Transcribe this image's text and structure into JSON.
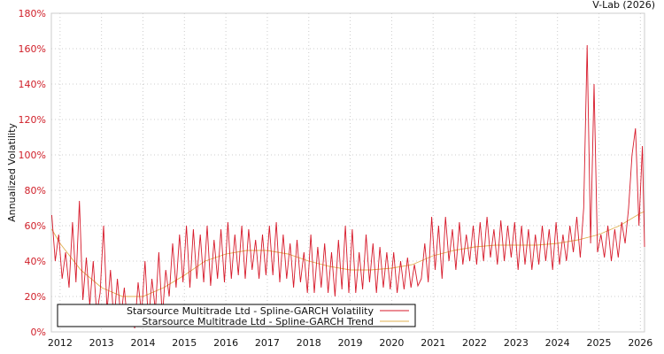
{
  "chart_data": {
    "type": "line",
    "title": "",
    "credit": "V-Lab (2026)",
    "xlabel": "",
    "ylabel": "Annualized Volatility",
    "xlim": [
      2011.79,
      2026.1
    ],
    "ylim": [
      0,
      180
    ],
    "grid": true,
    "legend_placement": "bottom-left",
    "x_ticks": [
      "2012",
      "2013",
      "2014",
      "2015",
      "2016",
      "2017",
      "2018",
      "2019",
      "2020",
      "2021",
      "2022",
      "2023",
      "2024",
      "2025",
      "2026"
    ],
    "y_ticks": [
      "0%",
      "20%",
      "40%",
      "60%",
      "80%",
      "100%",
      "120%",
      "140%",
      "160%",
      "180%"
    ],
    "colors": {
      "volatility": "#d7192a",
      "trend": "#e0b050"
    },
    "series": [
      {
        "name": "Starsource Multitrade Ltd - Spline-GARCH Volatility",
        "x_start": 2011.8,
        "x_step": 0.08333,
        "values": [
          66,
          40,
          55,
          30,
          45,
          25,
          62,
          28,
          74,
          18,
          42,
          15,
          40,
          10,
          22,
          60,
          12,
          35,
          5,
          30,
          8,
          25,
          3,
          15,
          2,
          28,
          10,
          40,
          5,
          30,
          12,
          45,
          8,
          35,
          20,
          50,
          25,
          55,
          28,
          60,
          25,
          58,
          30,
          55,
          28,
          60,
          26,
          52,
          30,
          58,
          28,
          62,
          30,
          55,
          32,
          60,
          30,
          58,
          35,
          52,
          30,
          55,
          32,
          60,
          32,
          62,
          28,
          55,
          30,
          50,
          25,
          52,
          28,
          45,
          22,
          55,
          22,
          48,
          25,
          50,
          22,
          45,
          20,
          52,
          24,
          60,
          22,
          58,
          22,
          45,
          24,
          55,
          28,
          50,
          22,
          48,
          25,
          45,
          24,
          45,
          22,
          40,
          24,
          42,
          25,
          38,
          26,
          30,
          50,
          28,
          65,
          35,
          60,
          30,
          65,
          40,
          58,
          35,
          62,
          38,
          55,
          40,
          60,
          38,
          62,
          40,
          65,
          42,
          58,
          38,
          63,
          40,
          60,
          42,
          62,
          35,
          60,
          38,
          58,
          35,
          55,
          38,
          60,
          40,
          58,
          35,
          62,
          38,
          55,
          40,
          60,
          45,
          65,
          42,
          70,
          162,
          50,
          140,
          45,
          55,
          42,
          60,
          40,
          58,
          42,
          62,
          50,
          70,
          100,
          115,
          60,
          105,
          48
        ]
      },
      {
        "name": "Starsource Multitrade Ltd - Spline-GARCH Trend",
        "x": [
          2011.8,
          2012,
          2012.5,
          2013,
          2013.5,
          2014,
          2014.5,
          2015,
          2015.5,
          2016,
          2016.5,
          2017,
          2017.5,
          2018,
          2018.5,
          2019,
          2019.5,
          2020,
          2020.5,
          2021,
          2021.5,
          2022,
          2022.5,
          2023,
          2023.5,
          2024,
          2024.5,
          2025,
          2025.5,
          2026,
          2026.1
        ],
        "values": [
          58,
          50,
          35,
          25,
          20,
          20,
          25,
          32,
          40,
          44,
          46,
          46,
          44,
          40,
          37,
          35,
          35,
          36,
          38,
          43,
          46,
          48,
          49,
          49,
          49,
          50,
          52,
          55,
          60,
          67,
          68
        ]
      }
    ]
  }
}
